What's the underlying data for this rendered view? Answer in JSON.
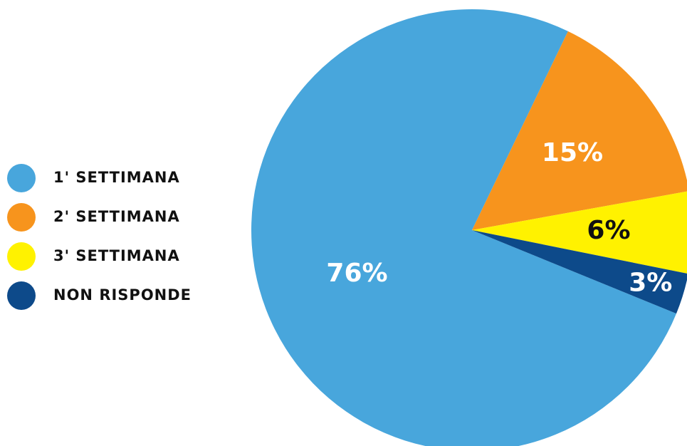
{
  "chart_data": {
    "type": "pie",
    "categories": [
      "1' SETTIMANA",
      "2' SETTIMANA",
      "3' SETTIMANA",
      "NON RISPONDE"
    ],
    "values": [
      76,
      15,
      6,
      3
    ],
    "value_labels": [
      "76%",
      "15%",
      "6%",
      "3%"
    ],
    "colors": [
      "#48a6dc",
      "#f7941d",
      "#fff200",
      "#0d4a8a"
    ],
    "label_colors": [
      "#ffffff",
      "#ffffff",
      "#111111",
      "#ffffff"
    ],
    "legend": "left"
  }
}
